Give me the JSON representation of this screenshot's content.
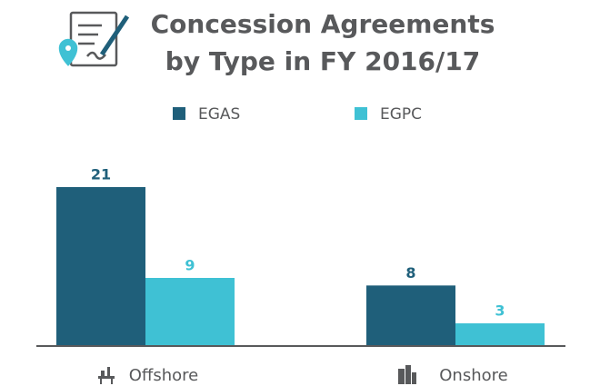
{
  "chart_data": {
    "type": "bar",
    "title": "Concession Agreements by Type in FY 2016/17",
    "categories": [
      "Offshore",
      "Onshore"
    ],
    "series": [
      {
        "name": "EGAS",
        "color": "#1f5f7a",
        "values": [
          21,
          8
        ]
      },
      {
        "name": "EGPC",
        "color": "#3fc1d4",
        "values": [
          9,
          3
        ]
      }
    ]
  }
}
